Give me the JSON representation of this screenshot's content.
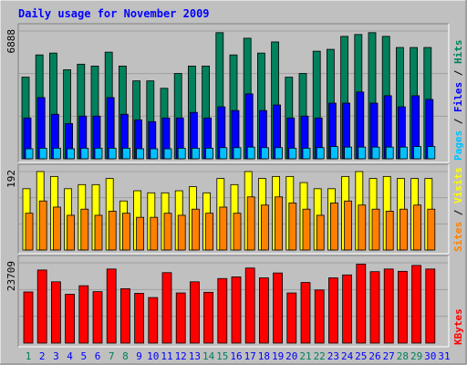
{
  "title": "Daily usage for November 2009",
  "colors": {
    "background": "#c0c0c0",
    "panel": "#c0c0c0",
    "title": "#0000ff",
    "hits": "#00805c",
    "files": "#0000ff",
    "pages": "#00c0ff",
    "visits": "#ffff00",
    "sites": "#ff8000",
    "kbytes": "#ff0000",
    "weekend_label": "#00805c",
    "weekday_label": "#0000ff"
  },
  "chart_data": [
    {
      "type": "bar",
      "panel": "top",
      "ymax_label": "6888",
      "legend": [
        "Pages",
        "Files",
        "Hits"
      ],
      "categories": [
        "1",
        "2",
        "3",
        "4",
        "5",
        "6",
        "7",
        "8",
        "9",
        "10",
        "11",
        "12",
        "13",
        "14",
        "15",
        "16",
        "17",
        "18",
        "19",
        "20",
        "21",
        "22",
        "23",
        "24",
        "25",
        "26",
        "27",
        "28",
        "29",
        "30",
        "31"
      ],
      "series": [
        {
          "name": "Hits",
          "values": [
            4400,
            5600,
            5700,
            4800,
            5100,
            5000,
            5750,
            5000,
            4200,
            4200,
            3800,
            4600,
            5000,
            5000,
            6800,
            5600,
            6500,
            5700,
            6300,
            4400,
            4600,
            5800,
            5900,
            6600,
            6700,
            6800,
            6600,
            6000,
            6000,
            6000,
            0
          ]
        },
        {
          "name": "Files",
          "values": [
            2200,
            3300,
            2400,
            1900,
            2300,
            2300,
            3300,
            2400,
            2100,
            2000,
            2200,
            2200,
            2500,
            2200,
            2800,
            2600,
            3500,
            2600,
            2900,
            2200,
            2300,
            2200,
            3000,
            3000,
            3600,
            3000,
            3400,
            2800,
            3400,
            3200,
            0
          ]
        },
        {
          "name": "Pages",
          "values": [
            180,
            190,
            190,
            180,
            190,
            190,
            190,
            190,
            180,
            180,
            180,
            190,
            190,
            190,
            200,
            200,
            210,
            200,
            200,
            190,
            190,
            200,
            220,
            210,
            210,
            210,
            210,
            210,
            220,
            220,
            0
          ]
        }
      ]
    },
    {
      "type": "bar",
      "panel": "middle",
      "ymax_label": "192",
      "legend": [
        "Sites",
        "Visits"
      ],
      "categories": [
        "1",
        "2",
        "3",
        "4",
        "5",
        "6",
        "7",
        "8",
        "9",
        "10",
        "11",
        "12",
        "13",
        "14",
        "15",
        "16",
        "17",
        "18",
        "19",
        "20",
        "21",
        "22",
        "23",
        "24",
        "25",
        "26",
        "27",
        "28",
        "29",
        "30",
        "31"
      ],
      "series": [
        {
          "name": "Visits",
          "values": [
            150,
            192,
            180,
            150,
            160,
            160,
            175,
            120,
            145,
            140,
            140,
            145,
            155,
            140,
            175,
            160,
            192,
            175,
            180,
            180,
            165,
            150,
            150,
            180,
            192,
            175,
            180,
            175,
            175,
            175,
            0
          ]
        },
        {
          "name": "Sites",
          "values": [
            90,
            120,
            105,
            85,
            100,
            85,
            95,
            90,
            80,
            80,
            90,
            85,
            100,
            90,
            105,
            90,
            130,
            110,
            130,
            115,
            100,
            85,
            115,
            120,
            110,
            100,
            95,
            100,
            110,
            100,
            0
          ]
        }
      ]
    },
    {
      "type": "bar",
      "panel": "bottom",
      "ymax_label": "23709",
      "legend": [
        "KBytes"
      ],
      "categories": [
        "1",
        "2",
        "3",
        "4",
        "5",
        "6",
        "7",
        "8",
        "9",
        "10",
        "11",
        "12",
        "13",
        "14",
        "15",
        "16",
        "17",
        "18",
        "19",
        "20",
        "21",
        "22",
        "23",
        "24",
        "25",
        "26",
        "27",
        "28",
        "29",
        "30",
        "31"
      ],
      "series": [
        {
          "name": "KBytes",
          "values": [
            15600,
            22300,
            18700,
            14900,
            17500,
            15700,
            22600,
            16600,
            15200,
            13900,
            21500,
            15300,
            18700,
            15500,
            19700,
            20200,
            22900,
            19900,
            21400,
            15300,
            18500,
            16200,
            19900,
            20800,
            24100,
            21800,
            22600,
            21900,
            23700,
            22600,
            0
          ]
        }
      ]
    }
  ]
}
